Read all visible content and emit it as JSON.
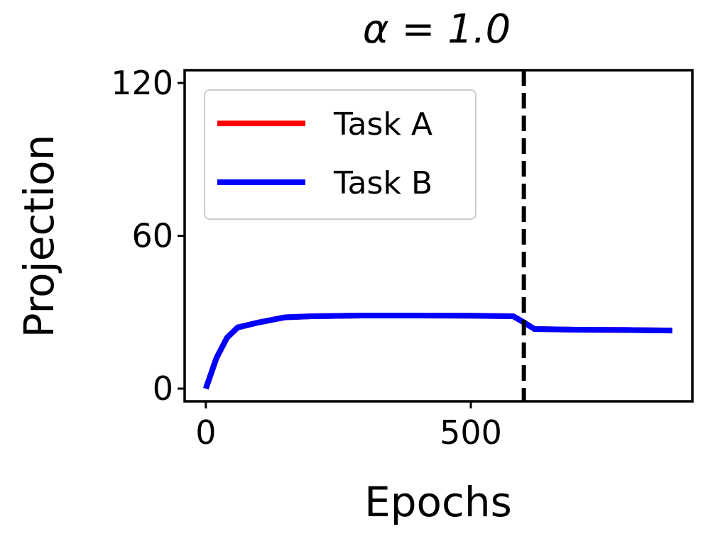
{
  "chart_data": {
    "type": "line",
    "title": "α = 1.0",
    "x_label": "Epochs",
    "y_label": "Projection",
    "x": [
      0,
      20,
      40,
      60,
      100,
      150,
      200,
      300,
      400,
      500,
      580,
      600,
      620,
      700,
      800,
      880
    ],
    "series": [
      {
        "name": "Task A",
        "color": "#ff0000",
        "values": [
          0,
          12,
          20,
          24,
          26,
          28,
          28.4,
          28.7,
          28.7,
          28.6,
          28.4,
          26,
          23.4,
          23.1,
          23,
          22.8
        ]
      },
      {
        "name": "Task B",
        "color": "#0000ff",
        "values": [
          0,
          12,
          20,
          24,
          26,
          28,
          28.4,
          28.7,
          28.7,
          28.6,
          28.4,
          26,
          23.4,
          23.1,
          23,
          22.8
        ]
      }
    ],
    "vlines": [
      600
    ],
    "xlim": [
      -40,
      918
    ],
    "ylim": [
      -5,
      125
    ],
    "xticks": [
      0,
      500
    ],
    "yticks": [
      0,
      60,
      120
    ],
    "legend": "upper left",
    "grid": false
  }
}
